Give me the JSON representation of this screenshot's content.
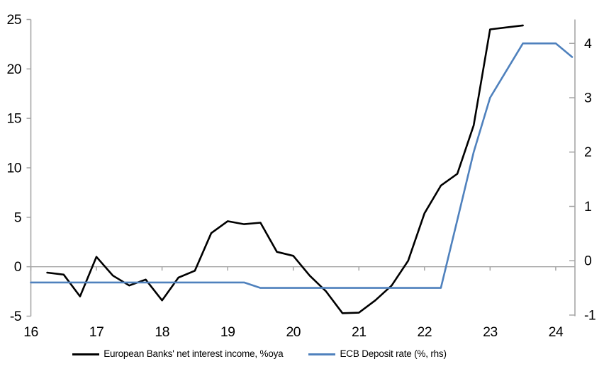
{
  "chart_data": {
    "type": "line",
    "title": "",
    "x_axis": {
      "ticks": [
        16,
        17,
        18,
        19,
        20,
        21,
        22,
        23,
        24
      ],
      "labels": [
        "16",
        "17",
        "18",
        "19",
        "20",
        "21",
        "22",
        "23",
        "24"
      ],
      "range": [
        16,
        24.293
      ],
      "crosses_at": 0
    },
    "left_axis": {
      "ticks": [
        -5,
        0,
        5,
        10,
        15,
        20,
        25
      ],
      "labels": [
        "-5",
        "0",
        "5",
        "10",
        "15",
        "20",
        "25"
      ],
      "range": [
        -5,
        25
      ]
    },
    "right_axis": {
      "ticks": [
        -1,
        0,
        1,
        2,
        3,
        4
      ],
      "labels": [
        "-1",
        "0",
        "1",
        "2",
        "3",
        "4"
      ],
      "range": [
        -1.02,
        4.44
      ]
    },
    "grid": "zero-line-only",
    "legend_position": "bottom",
    "series": [
      {
        "name": "European Banks' net interest income, %oya",
        "axis": "left",
        "color": "#000000",
        "x": [
          16.25,
          16.5,
          16.75,
          17.0,
          17.25,
          17.5,
          17.75,
          18.0,
          18.25,
          18.5,
          18.75,
          19.0,
          19.25,
          19.5,
          19.75,
          20.0,
          20.25,
          20.5,
          20.75,
          21.0,
          21.25,
          21.5,
          21.75,
          22.0,
          22.25,
          22.5,
          22.75,
          23.0,
          23.25,
          23.5
        ],
        "values": [
          -0.6,
          -0.8,
          -3.0,
          1.0,
          -0.9,
          -1.9,
          -1.3,
          -3.4,
          -1.1,
          -0.4,
          3.4,
          4.6,
          4.3,
          4.45,
          1.5,
          1.1,
          -0.9,
          -2.5,
          -4.7,
          -4.65,
          -3.4,
          -1.9,
          0.6,
          5.4,
          8.2,
          9.4,
          14.3,
          24.0,
          24.2,
          24.4
        ]
      },
      {
        "name": "ECB Deposit rate (%, rhs)",
        "axis": "right",
        "color": "#4f81bd",
        "x": [
          16.0,
          16.25,
          16.5,
          16.75,
          17.0,
          17.25,
          17.5,
          17.75,
          18.0,
          18.25,
          18.5,
          18.75,
          19.0,
          19.25,
          19.5,
          19.75,
          20.0,
          20.25,
          20.5,
          20.75,
          21.0,
          21.25,
          21.5,
          21.75,
          22.0,
          22.25,
          22.5,
          22.75,
          23.0,
          23.25,
          23.5,
          23.75,
          24.0,
          24.25
        ],
        "values": [
          -0.4,
          -0.4,
          -0.4,
          -0.4,
          -0.4,
          -0.4,
          -0.4,
          -0.4,
          -0.4,
          -0.4,
          -0.4,
          -0.4,
          -0.4,
          -0.4,
          -0.5,
          -0.5,
          -0.5,
          -0.5,
          -0.5,
          -0.5,
          -0.5,
          -0.5,
          -0.5,
          -0.5,
          -0.5,
          -0.5,
          0.75,
          2.0,
          3.0,
          3.5,
          4.0,
          4.0,
          4.0,
          3.75
        ]
      }
    ]
  },
  "legend": {
    "items": [
      {
        "label": "European Banks' net interest income, %oya",
        "color": "#000000"
      },
      {
        "label": "ECB Deposit rate (%, rhs)",
        "color": "#4f81bd"
      }
    ]
  },
  "colors": {
    "axis": "#a6a6a6",
    "text": "#000000",
    "background": "#ffffff",
    "series_black": "#000000",
    "series_blue": "#4f81bd"
  }
}
